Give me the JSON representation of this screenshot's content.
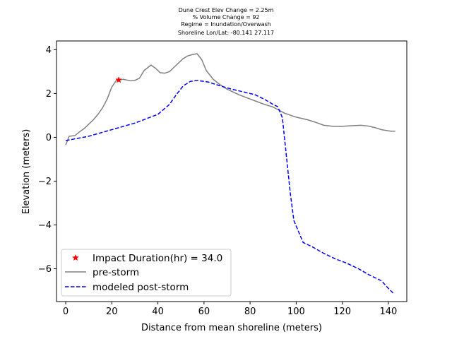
{
  "chart_data": {
    "type": "line",
    "title_lines": [
      "Dune Crest Elev Change = 2.25m",
      "% Volume Change = 92",
      "Regime = Inundation/Overwash",
      "Shoreline Lon/Lat: -80.141 27.117"
    ],
    "xlabel": "Distance from mean shoreline (meters)",
    "ylabel": "Elevation (meters)",
    "xlim": [
      -4,
      148
    ],
    "ylim": [
      -7.5,
      4.4
    ],
    "xticks": [
      0,
      20,
      40,
      60,
      80,
      100,
      120,
      140
    ],
    "yticks": [
      -6,
      -4,
      -2,
      0,
      2,
      4
    ],
    "ytick_labels": [
      "−6",
      "−4",
      "−2",
      "0",
      "2",
      "4"
    ],
    "grid": false,
    "legend_position": "lower-left",
    "series": [
      {
        "name": "pre-storm",
        "style": "solid",
        "color": "#808080",
        "points": [
          [
            0,
            -0.35
          ],
          [
            1.5,
            0.05
          ],
          [
            4,
            0.08
          ],
          [
            6,
            0.25
          ],
          [
            8,
            0.4
          ],
          [
            10,
            0.6
          ],
          [
            12,
            0.8
          ],
          [
            14,
            1.05
          ],
          [
            16,
            1.35
          ],
          [
            18,
            1.75
          ],
          [
            20,
            2.3
          ],
          [
            22,
            2.6
          ],
          [
            25,
            2.65
          ],
          [
            28,
            2.58
          ],
          [
            30,
            2.6
          ],
          [
            32,
            2.7
          ],
          [
            34,
            3.05
          ],
          [
            37,
            3.3
          ],
          [
            39,
            3.15
          ],
          [
            41,
            2.95
          ],
          [
            43,
            2.93
          ],
          [
            45,
            3.0
          ],
          [
            48,
            3.3
          ],
          [
            51,
            3.6
          ],
          [
            53,
            3.72
          ],
          [
            55,
            3.78
          ],
          [
            57,
            3.82
          ],
          [
            59,
            3.55
          ],
          [
            61,
            3.05
          ],
          [
            64,
            2.65
          ],
          [
            67,
            2.4
          ],
          [
            70,
            2.2
          ],
          [
            75,
            1.95
          ],
          [
            80,
            1.75
          ],
          [
            85,
            1.55
          ],
          [
            90,
            1.38
          ],
          [
            95,
            1.1
          ],
          [
            100,
            0.92
          ],
          [
            105,
            0.8
          ],
          [
            108,
            0.7
          ],
          [
            112,
            0.55
          ],
          [
            116,
            0.5
          ],
          [
            120,
            0.5
          ],
          [
            124,
            0.53
          ],
          [
            128,
            0.55
          ],
          [
            131,
            0.52
          ],
          [
            134,
            0.45
          ],
          [
            137,
            0.35
          ],
          [
            141,
            0.28
          ],
          [
            143,
            0.28
          ]
        ]
      },
      {
        "name": "modeled post-storm",
        "style": "dashed",
        "color": "#0000ff",
        "points": [
          [
            0,
            -0.15
          ],
          [
            5,
            -0.05
          ],
          [
            10,
            0.05
          ],
          [
            15,
            0.2
          ],
          [
            20,
            0.35
          ],
          [
            25,
            0.5
          ],
          [
            30,
            0.65
          ],
          [
            35,
            0.85
          ],
          [
            40,
            1.05
          ],
          [
            45,
            1.5
          ],
          [
            48,
            1.95
          ],
          [
            51,
            2.35
          ],
          [
            54,
            2.55
          ],
          [
            57,
            2.6
          ],
          [
            62,
            2.52
          ],
          [
            67,
            2.35
          ],
          [
            72,
            2.2
          ],
          [
            78,
            2.05
          ],
          [
            82,
            1.95
          ],
          [
            86,
            1.75
          ],
          [
            90,
            1.5
          ],
          [
            92,
            1.4
          ],
          [
            94,
            0.9
          ],
          [
            96,
            -1.1
          ],
          [
            97.5,
            -2.6
          ],
          [
            99,
            -3.8
          ],
          [
            101,
            -4.3
          ],
          [
            103,
            -4.8
          ],
          [
            107,
            -5.0
          ],
          [
            112,
            -5.3
          ],
          [
            117,
            -5.55
          ],
          [
            122,
            -5.75
          ],
          [
            127,
            -6.0
          ],
          [
            132,
            -6.3
          ],
          [
            137,
            -6.55
          ],
          [
            140,
            -6.9
          ],
          [
            142.5,
            -7.15
          ]
        ]
      }
    ],
    "markers": [
      {
        "name": "Impact Duration(hr) = 34.0",
        "x": 23,
        "y": 2.62,
        "color": "#ff0000",
        "symbol": "star"
      }
    ]
  }
}
